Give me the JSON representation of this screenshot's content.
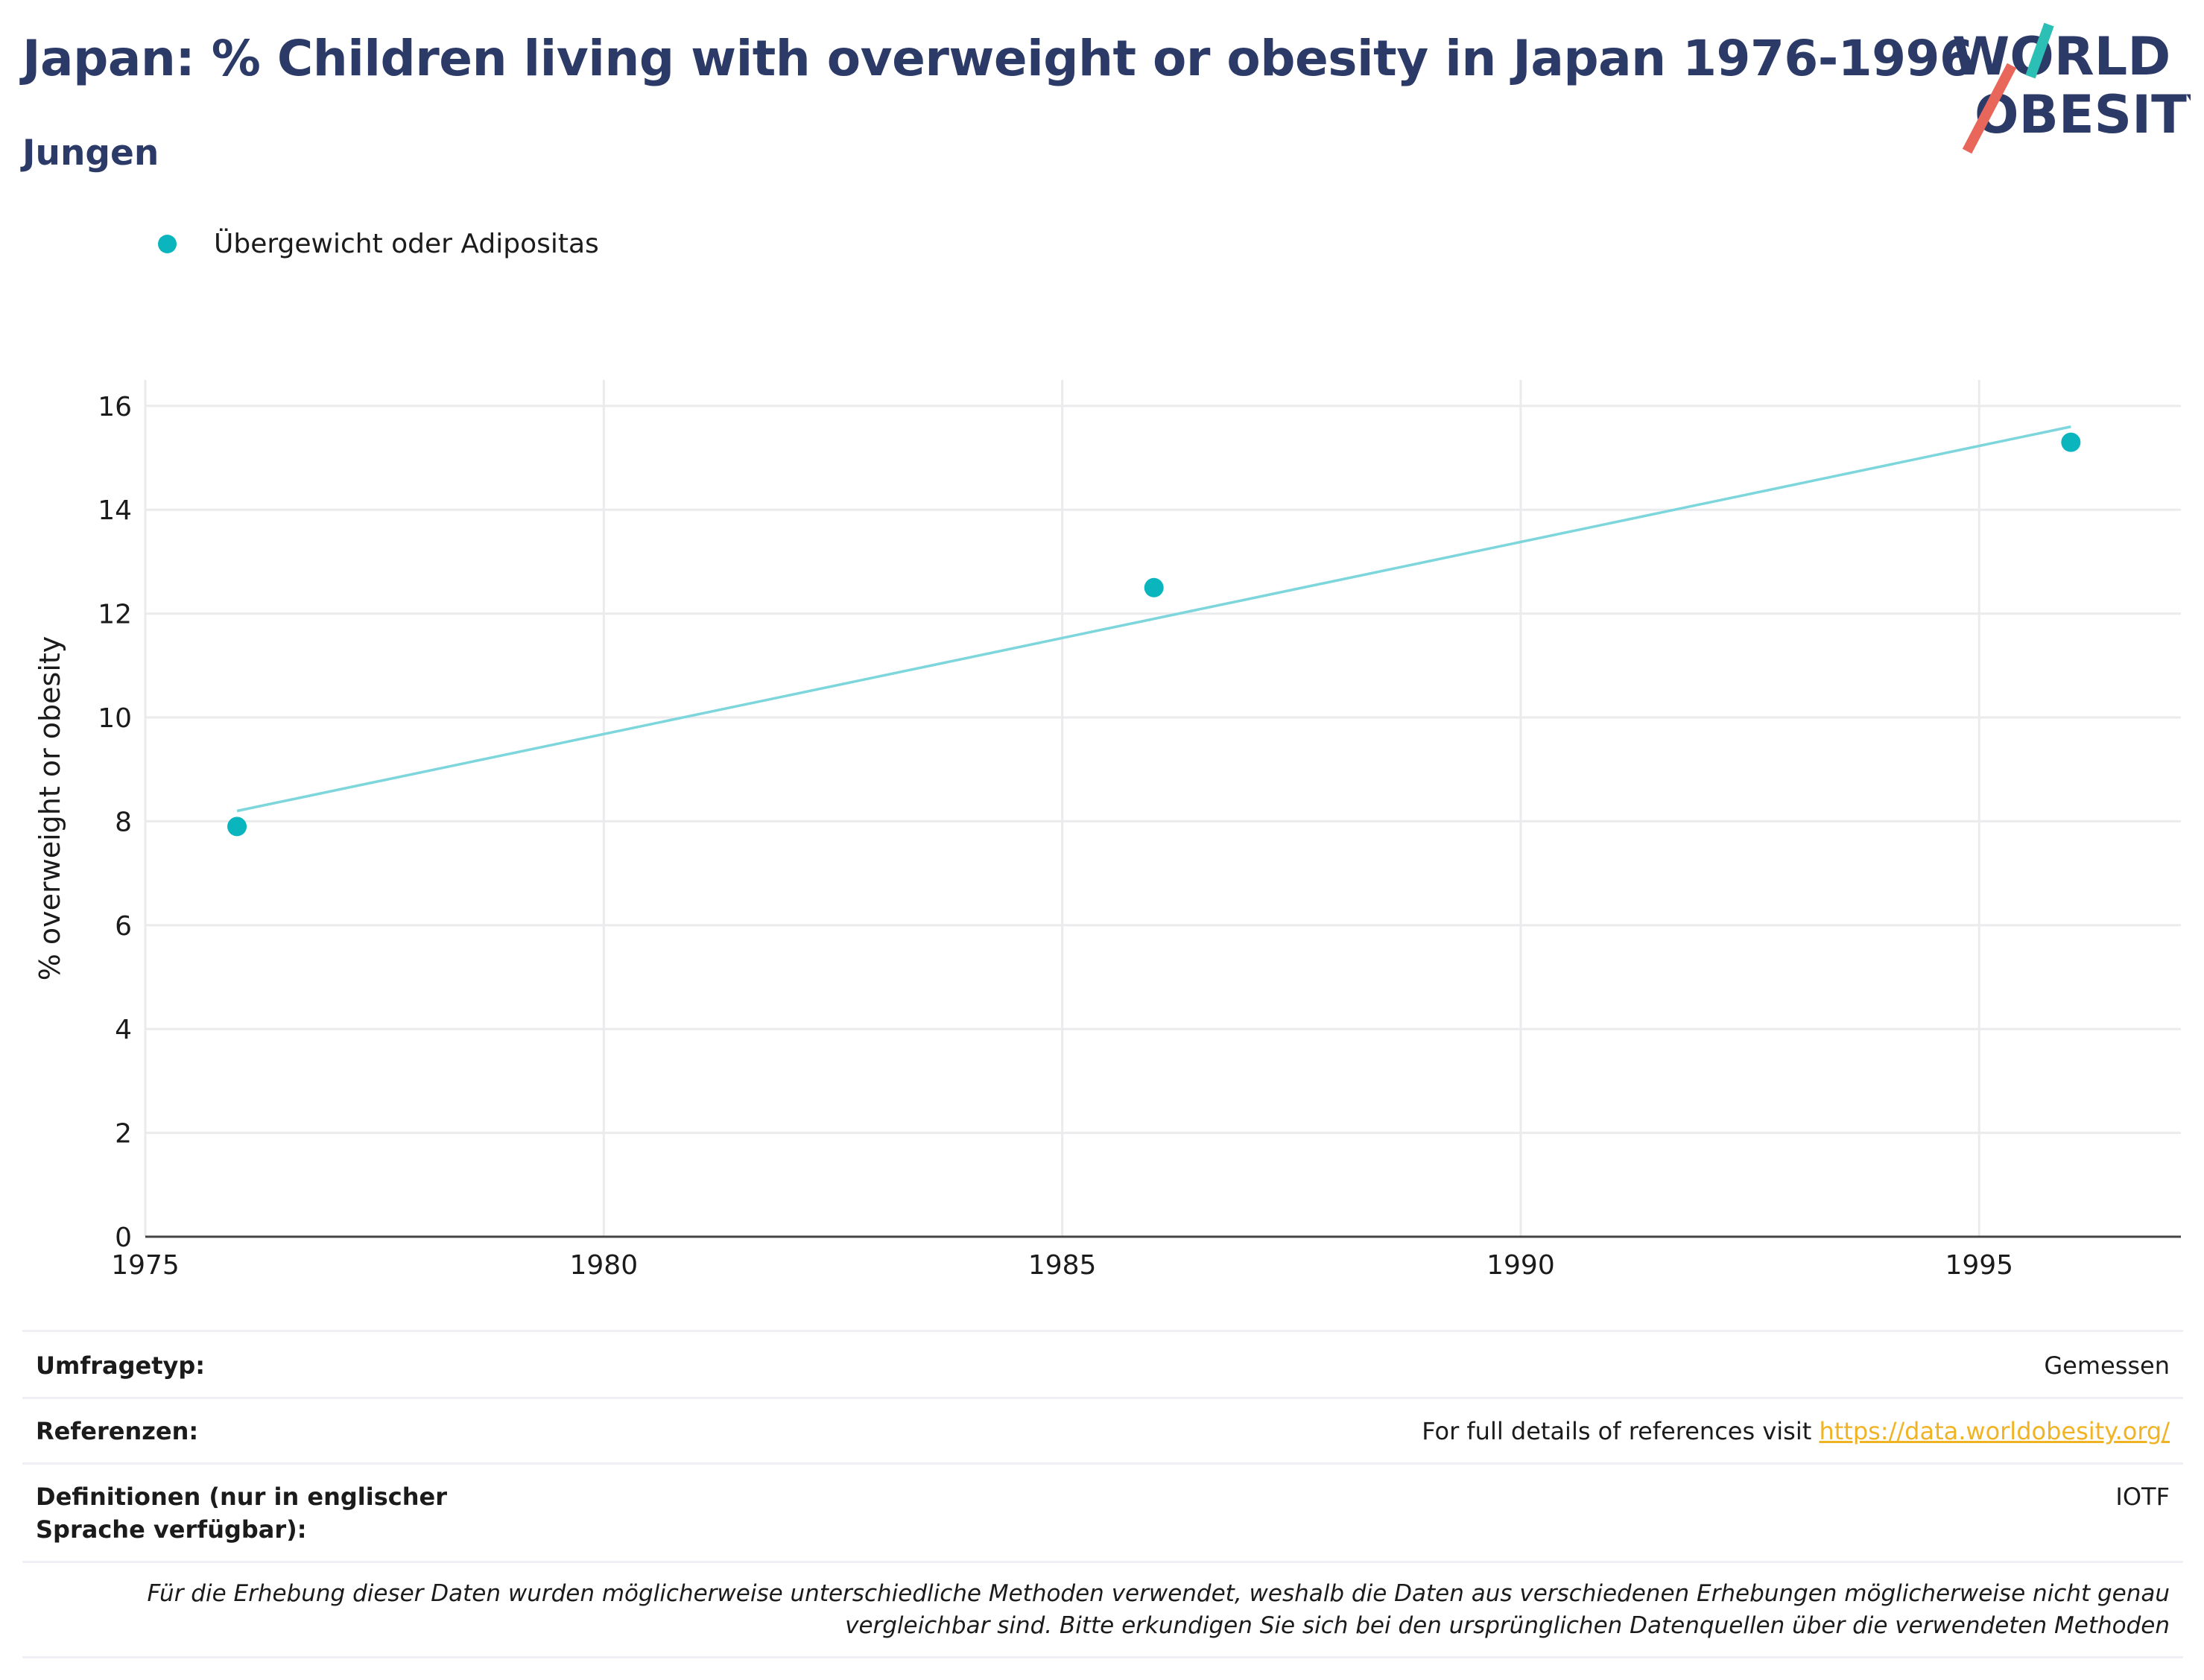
{
  "header": {
    "title": "Japan: % Children living with overweight or obesity in Japan 1976-1996",
    "subtitle": "Jungen"
  },
  "logo": {
    "line1": "WORLD",
    "line2": "OBESITY",
    "colors": {
      "text": "#2b3a67",
      "slash_top": "#2bbfb5",
      "slash_bottom": "#e8665a"
    }
  },
  "legend": {
    "label": "Übergewicht oder Adipositas",
    "color": "#0ab5be"
  },
  "chart_data": {
    "type": "scatter",
    "title": "Japan: % Children living with overweight or obesity in Japan 1976-1996",
    "subtitle": "Jungen",
    "xlabel": "",
    "ylabel": "% overweight or obesity",
    "xlim": [
      1975,
      1997.2
    ],
    "ylim": [
      0,
      16.5
    ],
    "xticks": [
      1975,
      1980,
      1985,
      1990,
      1995
    ],
    "yticks": [
      0,
      2,
      4,
      6,
      8,
      10,
      12,
      14,
      16
    ],
    "grid": true,
    "legend_position": "top-left",
    "series": [
      {
        "name": "Übergewicht oder Adipositas",
        "color": "#0ab5be",
        "x": [
          1976,
          1986,
          1996
        ],
        "y": [
          7.9,
          12.5,
          15.3
        ]
      }
    ],
    "trendline": {
      "color": "#7dd6dc",
      "x": [
        1976,
        1996
      ],
      "y": [
        8.2,
        15.6
      ]
    }
  },
  "meta": {
    "survey_type_label": "Umfragetyp:",
    "survey_type_value": "Gemessen",
    "references_label": "Referenzen:",
    "references_text": "For full details of references visit ",
    "references_link": "https://data.worldobesity.org/",
    "definitions_label": "Definitionen (nur in englischer Sprache verfügbar):",
    "definitions_value": "IOTF",
    "note_line1": "Für die Erhebung dieser Daten wurden möglicherweise unterschiedliche Methoden verwendet, weshalb die Daten aus verschiedenen Erhebungen möglicherweise nicht genau",
    "note_line2": "vergleichbar sind. Bitte erkundigen Sie sich bei den ursprünglichen Datenquellen über die verwendeten Methoden"
  }
}
